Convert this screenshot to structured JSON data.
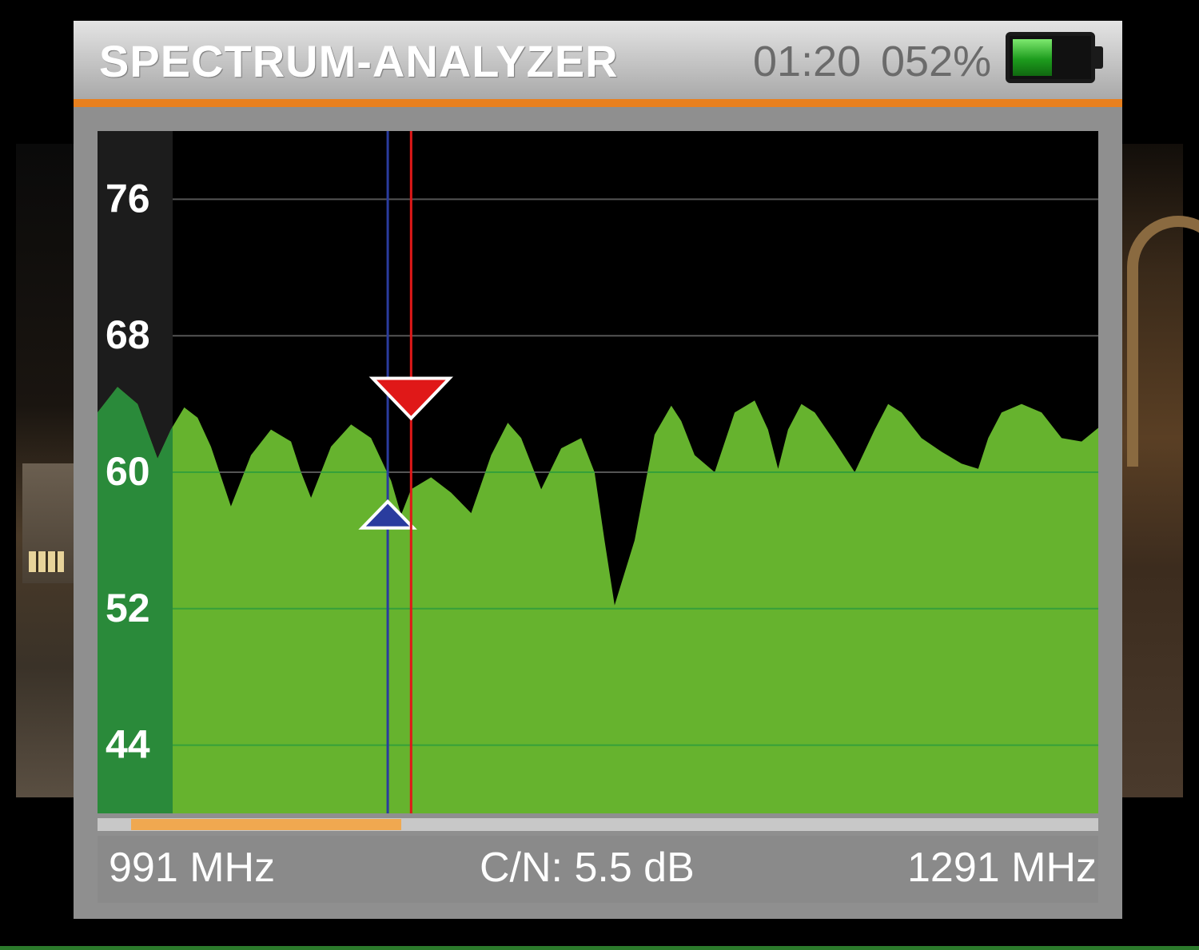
{
  "header": {
    "title": "SPECTRUM-ANALYZER",
    "clock": "01:20",
    "battery_percent_label": "052%",
    "battery_level": 0.52
  },
  "colors": {
    "accent": "#e8801e",
    "spectrum_fill": "#66b32e",
    "axis_band": "#2a8a3a",
    "marker_red": "#e01818",
    "marker_blue": "#2a3c9e"
  },
  "footer": {
    "start_freq": "991 MHz",
    "cn_readout": "C/N: 5.5 dB",
    "stop_freq": "1291 MHz"
  },
  "scrollbar": {
    "position_fraction": 0.0,
    "visible_fraction": 0.27
  },
  "chart_data": {
    "type": "area",
    "x_range": [
      991,
      1291
    ],
    "x_unit": "MHz",
    "ylim": [
      40,
      80
    ],
    "yticks": [
      76,
      68,
      60,
      52,
      44
    ],
    "ytick_labels": [
      "76",
      "68",
      "60",
      "52",
      "44"
    ],
    "grid": true,
    "x": [
      991,
      997,
      1003,
      1009,
      1013,
      1017,
      1021,
      1025,
      1031,
      1037,
      1043,
      1049,
      1052,
      1055,
      1061,
      1067,
      1073,
      1079,
      1082,
      1085,
      1091,
      1097,
      1103,
      1109,
      1114,
      1118,
      1124,
      1130,
      1136,
      1140,
      1143,
      1146,
      1152,
      1158,
      1163,
      1166,
      1170,
      1176,
      1182,
      1188,
      1192,
      1195,
      1198,
      1202,
      1206,
      1212,
      1218,
      1224,
      1228,
      1232,
      1238,
      1244,
      1250,
      1255,
      1258,
      1262,
      1268,
      1274,
      1280,
      1286,
      1291
    ],
    "y": [
      63.5,
      65.0,
      64.0,
      60.8,
      62.5,
      63.8,
      63.2,
      61.5,
      58.0,
      61.0,
      62.5,
      61.8,
      60.0,
      58.5,
      61.5,
      62.8,
      62.0,
      59.5,
      57.5,
      59.0,
      59.7,
      58.8,
      57.6,
      61.0,
      62.9,
      62.0,
      59.0,
      61.4,
      62.0,
      60.0,
      56.0,
      52.2,
      56.0,
      62.2,
      63.9,
      63.0,
      61.0,
      60.0,
      63.5,
      64.2,
      62.5,
      60.2,
      62.5,
      64.0,
      63.5,
      61.8,
      60.0,
      62.5,
      64.0,
      63.5,
      62.0,
      61.2,
      60.5,
      60.2,
      62.0,
      63.5,
      64.0,
      63.5,
      62.0,
      61.8,
      62.6
    ],
    "markers": [
      {
        "name": "blue",
        "x": 1078,
        "y": 58.0
      },
      {
        "name": "red",
        "x": 1085,
        "y": 63.3
      }
    ]
  }
}
